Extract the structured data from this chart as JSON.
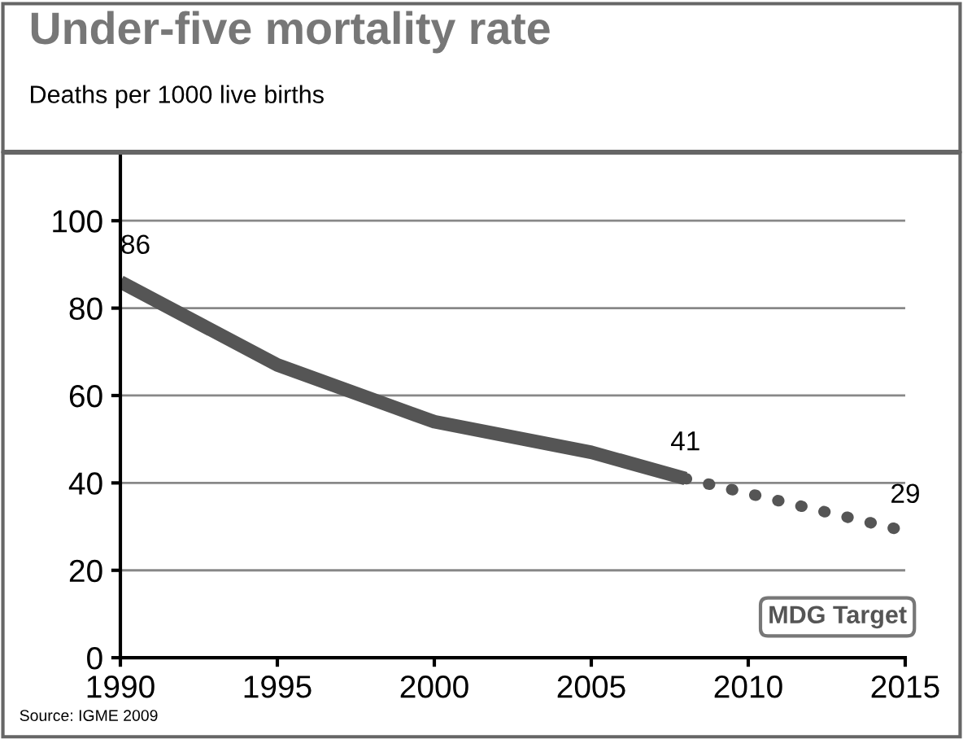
{
  "chart_data": {
    "type": "line",
    "title": "Under-five mortality rate",
    "subtitle": "Deaths per 1000 live births",
    "series": [
      {
        "color": "#555555",
        "x": [
          1990,
          1995,
          2000,
          2005,
          2008
        ],
        "values": [
          86,
          67,
          54,
          47,
          41
        ],
        "value_labels": [
          "86",
          null,
          null,
          null,
          "41"
        ],
        "line_style": "solid"
      },
      {
        "name": "MDG Target",
        "color": "#555555",
        "x": [
          2008,
          2015
        ],
        "values": [
          41,
          29
        ],
        "value_labels": [
          null,
          "29"
        ],
        "line_style": "dotted"
      }
    ],
    "xlim": [
      1990,
      2015
    ],
    "xticks": [
      1990,
      1995,
      2000,
      2005,
      2010,
      2015
    ],
    "ylim": [
      0,
      115
    ],
    "yticks": [
      0,
      20,
      40,
      60,
      80,
      100
    ],
    "grid": "y",
    "legend": false,
    "marker": "none",
    "annotations": [
      "Source: IGME 2009"
    ]
  }
}
